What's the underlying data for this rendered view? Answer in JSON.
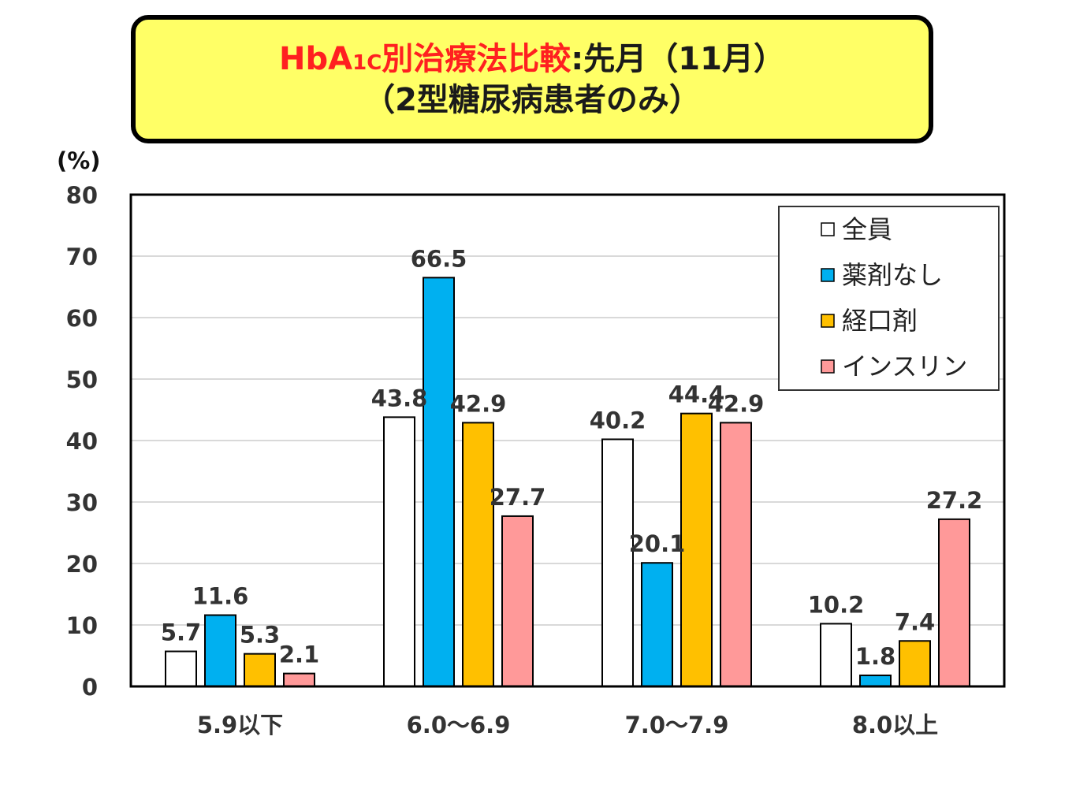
{
  "title": {
    "part_red_1": "HbA",
    "part_red_sub": "1C",
    "part_red_2": "別治療法比較",
    "part_black": ":先月（11月）",
    "line2": "（2型糖尿病患者のみ）"
  },
  "colors": {
    "title_bg": "#ffff66",
    "title_red": "#ff2020",
    "series": [
      "#ffffff",
      "#00b0f0",
      "#ffc000",
      "#ff9999"
    ]
  },
  "chart_data": {
    "type": "bar",
    "unit_label": "(%)",
    "categories": [
      "5.9以下",
      "6.0～6.9",
      "7.0～7.9",
      "8.0以上"
    ],
    "ylim": [
      0,
      80
    ],
    "yticks": [
      0,
      10,
      20,
      30,
      40,
      50,
      60,
      70,
      80
    ],
    "grid": true,
    "legend_position": "top-right",
    "series": [
      {
        "name": "全員",
        "values": [
          5.7,
          43.8,
          40.2,
          10.2
        ]
      },
      {
        "name": "薬剤なし",
        "values": [
          11.6,
          66.5,
          20.1,
          1.8
        ]
      },
      {
        "name": "経口剤",
        "values": [
          5.3,
          42.9,
          44.4,
          7.4
        ]
      },
      {
        "name": "インスリン",
        "values": [
          2.1,
          27.7,
          42.9,
          27.2
        ]
      }
    ]
  }
}
